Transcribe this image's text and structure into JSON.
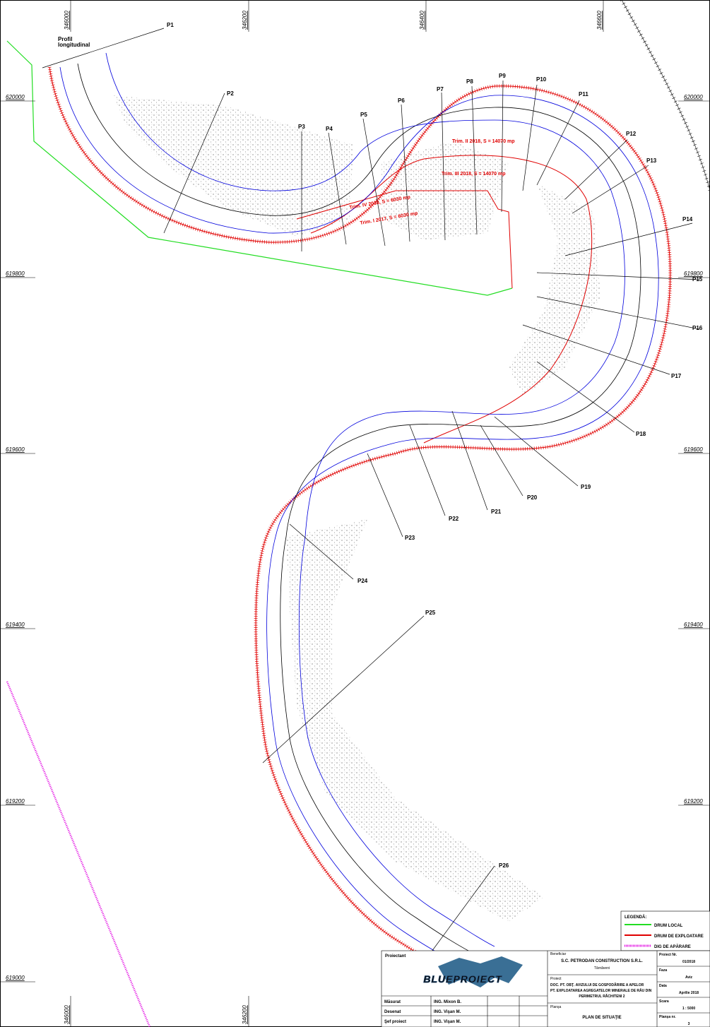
{
  "grid": {
    "northing_left": [
      "620000",
      "619800",
      "619600",
      "619400",
      "619200",
      "619000"
    ],
    "northing_right": [
      "620000",
      "619800",
      "619600",
      "619400",
      "619200"
    ],
    "easting_top": [
      "346000",
      "346200",
      "346400",
      "346600"
    ],
    "easting_bottom": [
      "346000",
      "346200"
    ]
  },
  "profiles": [
    "P1",
    "P2",
    "P3",
    "P4",
    "P5",
    "P6",
    "P7",
    "P8",
    "P9",
    "P10",
    "P11",
    "P12",
    "P13",
    "P14",
    "P15",
    "P16",
    "P17",
    "P18",
    "P19",
    "P20",
    "P21",
    "P22",
    "P23",
    "P24",
    "P25",
    "P26"
  ],
  "annotations": {
    "profil_longitudinal": [
      "Profil",
      "longitudinal"
    ],
    "trim": [
      "Trim. II 2018, S = 14070 mp",
      "Trim. III 2018, S = 14070 mp",
      "Trim. IV 2018, S = 6030 mp",
      "Trim. I 2017, S = 6030 mp"
    ]
  },
  "legend": {
    "title": "LEGENDĂ:",
    "items": [
      "DRUM LOCAL",
      "DRUM DE EXPLOATARE",
      "DIG DE APĂRARE"
    ]
  },
  "title_block": {
    "designer_label": "Proiectant",
    "logo": "BLUEPROIECT",
    "rows": [
      [
        "Măsurat",
        "ING. Mixon B."
      ],
      [
        "Desenat",
        "ING. Vişan M."
      ],
      [
        "Şef proiect",
        "ING. Vişan M."
      ]
    ],
    "beneficiary_label": "Beneficiar",
    "beneficiary": "S.C. PETRODAN CONSTRUCTION S.R.L.",
    "beneficiary_city": "Târnăveni",
    "project_label": "Proiect",
    "project": [
      "DOC. PT. OBŢ. AVIZULUI DE GOSPODĂRIRE A APELOR",
      "PT. EXPLOATAREA AGREGATELOR MINERALE DE RÂU DIN",
      "PERIMETRUL RĂCHITENI 2"
    ],
    "sheet_label": "Planşa",
    "sheet": "PLAN DE SITUAŢIE",
    "fields": [
      [
        "Proiect Nr.",
        "01/2018"
      ],
      [
        "Faza",
        "Aviz"
      ],
      [
        "Data",
        "Aprilie 2018"
      ],
      [
        "Scara",
        "1 : 5000"
      ],
      [
        "Planşa nr.",
        "3"
      ]
    ]
  }
}
